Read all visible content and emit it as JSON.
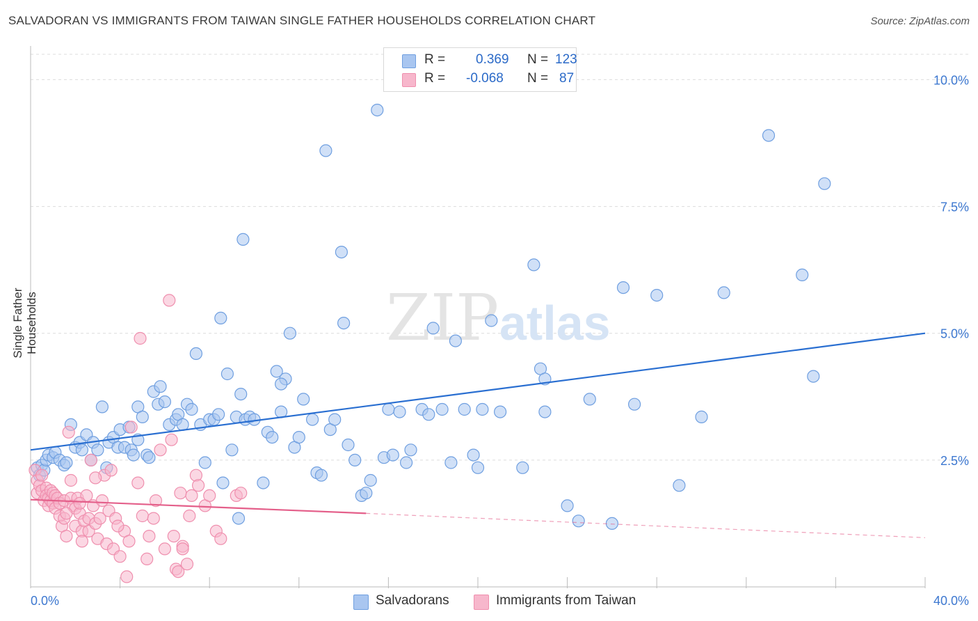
{
  "title": "SALVADORAN VS IMMIGRANTS FROM TAIWAN SINGLE FATHER HOUSEHOLDS CORRELATION CHART",
  "source": "Source: ZipAtlas.com",
  "watermark": {
    "zip": "ZIP",
    "atlas": "atlas"
  },
  "legend": {
    "rows": [
      {
        "r_label": "R =",
        "r_value": "0.369",
        "n_label": "N =",
        "n_value": "123",
        "color": "#a9c6f0"
      },
      {
        "r_label": "R =",
        "r_value": "-0.068",
        "n_label": "N =",
        "n_value": "87",
        "color": "#f7b7cc"
      }
    ]
  },
  "bottom_legend": [
    {
      "label": "Salvadorans",
      "color": "#a9c6f0"
    },
    {
      "label": "Immigrants from Taiwan",
      "color": "#f7b7cc"
    }
  ],
  "chart_data": {
    "type": "scatter",
    "title": "SALVADORAN VS IMMIGRANTS FROM TAIWAN SINGLE FATHER HOUSEHOLDS CORRELATION CHART",
    "xlabel": "",
    "ylabel": "Single Father Households",
    "xlim": [
      0,
      40
    ],
    "ylim": [
      0,
      10.5
    ],
    "x_tick_labels": [
      "0.0%",
      "40.0%"
    ],
    "y_ticks": [
      2.5,
      5.0,
      7.5,
      10.0
    ],
    "y_tick_labels": [
      "2.5%",
      "5.0%",
      "7.5%",
      "10.0%"
    ],
    "grid": true,
    "series": [
      {
        "name": "Salvadorans",
        "color": "#6f9fe0",
        "fill": "#a9c6f0",
        "trend": {
          "x": [
            0,
            40
          ],
          "y": [
            2.7,
            5.0
          ],
          "color": "#2a6fd1"
        },
        "points": [
          [
            0.3,
            2.35
          ],
          [
            0.4,
            2.2
          ],
          [
            0.5,
            2.4
          ],
          [
            0.6,
            2.3
          ],
          [
            0.7,
            2.5
          ],
          [
            0.8,
            2.6
          ],
          [
            1.0,
            2.55
          ],
          [
            1.1,
            2.65
          ],
          [
            1.3,
            2.5
          ],
          [
            1.5,
            2.4
          ],
          [
            1.6,
            2.45
          ],
          [
            1.8,
            3.2
          ],
          [
            2.0,
            2.75
          ],
          [
            2.2,
            2.85
          ],
          [
            2.3,
            2.7
          ],
          [
            2.5,
            3.0
          ],
          [
            2.7,
            2.5
          ],
          [
            2.8,
            2.85
          ],
          [
            3.0,
            2.7
          ],
          [
            3.2,
            3.55
          ],
          [
            3.4,
            2.35
          ],
          [
            3.5,
            2.85
          ],
          [
            3.7,
            2.95
          ],
          [
            3.9,
            2.75
          ],
          [
            4.0,
            3.1
          ],
          [
            4.2,
            2.75
          ],
          [
            4.4,
            3.15
          ],
          [
            4.5,
            2.7
          ],
          [
            4.6,
            2.6
          ],
          [
            4.8,
            3.55
          ],
          [
            5.0,
            3.35
          ],
          [
            5.2,
            2.6
          ],
          [
            5.3,
            2.55
          ],
          [
            5.5,
            3.85
          ],
          [
            5.7,
            3.6
          ],
          [
            5.8,
            3.95
          ],
          [
            6.0,
            3.65
          ],
          [
            6.2,
            3.2
          ],
          [
            6.5,
            3.3
          ],
          [
            6.6,
            3.4
          ],
          [
            6.8,
            3.2
          ],
          [
            7.0,
            3.6
          ],
          [
            7.2,
            3.5
          ],
          [
            7.4,
            4.6
          ],
          [
            7.6,
            3.2
          ],
          [
            7.8,
            2.45
          ],
          [
            8.0,
            3.3
          ],
          [
            8.2,
            3.3
          ],
          [
            8.4,
            3.4
          ],
          [
            8.6,
            2.05
          ],
          [
            8.8,
            4.2
          ],
          [
            9.0,
            2.7
          ],
          [
            9.2,
            3.35
          ],
          [
            9.4,
            3.8
          ],
          [
            9.6,
            3.3
          ],
          [
            9.8,
            3.35
          ],
          [
            10.0,
            3.3
          ],
          [
            10.4,
            2.05
          ],
          [
            10.6,
            3.05
          ],
          [
            10.8,
            2.95
          ],
          [
            11.0,
            4.25
          ],
          [
            11.2,
            3.45
          ],
          [
            11.4,
            4.1
          ],
          [
            11.6,
            5.0
          ],
          [
            11.8,
            2.75
          ],
          [
            12.0,
            2.95
          ],
          [
            12.2,
            3.7
          ],
          [
            12.6,
            3.3
          ],
          [
            12.8,
            2.25
          ],
          [
            13.0,
            2.2
          ],
          [
            13.2,
            8.6
          ],
          [
            13.4,
            3.1
          ],
          [
            13.6,
            3.3
          ],
          [
            13.9,
            6.6
          ],
          [
            14.0,
            5.2
          ],
          [
            14.2,
            2.8
          ],
          [
            14.5,
            2.5
          ],
          [
            14.8,
            1.8
          ],
          [
            15.0,
            1.85
          ],
          [
            15.2,
            2.1
          ],
          [
            15.5,
            9.4
          ],
          [
            15.8,
            2.55
          ],
          [
            16.0,
            3.5
          ],
          [
            16.2,
            2.6
          ],
          [
            16.5,
            3.45
          ],
          [
            16.8,
            2.45
          ],
          [
            17.0,
            2.7
          ],
          [
            17.5,
            3.5
          ],
          [
            17.8,
            3.4
          ],
          [
            18.0,
            5.1
          ],
          [
            18.4,
            3.5
          ],
          [
            18.8,
            2.45
          ],
          [
            19.0,
            4.85
          ],
          [
            19.4,
            3.5
          ],
          [
            19.8,
            2.6
          ],
          [
            20.0,
            2.35
          ],
          [
            20.2,
            3.5
          ],
          [
            20.6,
            5.25
          ],
          [
            22.0,
            2.35
          ],
          [
            21.0,
            3.45
          ],
          [
            22.5,
            6.35
          ],
          [
            22.8,
            4.3
          ],
          [
            23.0,
            4.1
          ],
          [
            23.0,
            3.45
          ],
          [
            24.0,
            1.6
          ],
          [
            24.5,
            1.3
          ],
          [
            25.0,
            3.7
          ],
          [
            26.0,
            1.25
          ],
          [
            26.5,
            5.9
          ],
          [
            27.0,
            3.6
          ],
          [
            28.0,
            5.75
          ],
          [
            29.0,
            2.0
          ],
          [
            30.0,
            3.35
          ],
          [
            31.0,
            5.8
          ],
          [
            33.0,
            8.9
          ],
          [
            34.5,
            6.15
          ],
          [
            35.0,
            4.15
          ],
          [
            35.5,
            7.95
          ],
          [
            9.5,
            6.85
          ],
          [
            8.5,
            5.3
          ],
          [
            11.2,
            4.0
          ],
          [
            9.3,
            1.35
          ],
          [
            4.8,
            2.9
          ]
        ]
      },
      {
        "name": "Immigrants from Taiwan",
        "color": "#ef8fae",
        "fill": "#f7b7cc",
        "trend": {
          "x": [
            0,
            15
          ],
          "y": [
            1.72,
            1.45
          ],
          "color": "#e45f8a",
          "dashed_extension": {
            "x": [
              15,
              40
            ],
            "y": [
              1.45,
              0.97
            ]
          }
        },
        "points": [
          [
            0.2,
            2.3
          ],
          [
            0.3,
            2.1
          ],
          [
            0.3,
            1.85
          ],
          [
            0.4,
            2.0
          ],
          [
            0.5,
            1.9
          ],
          [
            0.5,
            2.2
          ],
          [
            0.6,
            1.7
          ],
          [
            0.7,
            1.95
          ],
          [
            0.7,
            1.8
          ],
          [
            0.8,
            1.75
          ],
          [
            0.8,
            1.6
          ],
          [
            0.9,
            1.9
          ],
          [
            0.9,
            1.7
          ],
          [
            1.0,
            1.85
          ],
          [
            1.0,
            1.65
          ],
          [
            1.1,
            1.8
          ],
          [
            1.1,
            1.55
          ],
          [
            1.2,
            1.75
          ],
          [
            1.3,
            1.65
          ],
          [
            1.3,
            1.4
          ],
          [
            1.4,
            1.2
          ],
          [
            1.5,
            1.7
          ],
          [
            1.5,
            1.35
          ],
          [
            1.6,
            1.0
          ],
          [
            1.7,
            3.05
          ],
          [
            1.8,
            2.1
          ],
          [
            1.8,
            1.75
          ],
          [
            1.9,
            1.6
          ],
          [
            2.0,
            1.55
          ],
          [
            2.0,
            1.2
          ],
          [
            2.1,
            1.75
          ],
          [
            2.2,
            1.45
          ],
          [
            2.3,
            1.1
          ],
          [
            2.3,
            0.9
          ],
          [
            2.4,
            1.3
          ],
          [
            2.5,
            1.8
          ],
          [
            2.6,
            1.1
          ],
          [
            2.6,
            1.35
          ],
          [
            2.7,
            2.5
          ],
          [
            2.8,
            1.6
          ],
          [
            2.9,
            1.25
          ],
          [
            3.0,
            0.95
          ],
          [
            3.1,
            1.35
          ],
          [
            3.2,
            1.7
          ],
          [
            3.3,
            2.2
          ],
          [
            3.4,
            0.85
          ],
          [
            3.5,
            1.5
          ],
          [
            3.6,
            2.3
          ],
          [
            3.7,
            0.75
          ],
          [
            3.8,
            1.35
          ],
          [
            4.0,
            0.6
          ],
          [
            4.2,
            1.1
          ],
          [
            4.3,
            0.2
          ],
          [
            4.4,
            0.9
          ],
          [
            4.5,
            3.15
          ],
          [
            4.8,
            2.05
          ],
          [
            4.9,
            4.9
          ],
          [
            5.0,
            1.4
          ],
          [
            5.2,
            0.55
          ],
          [
            5.3,
            1.0
          ],
          [
            5.5,
            1.35
          ],
          [
            5.6,
            1.7
          ],
          [
            5.8,
            2.7
          ],
          [
            6.0,
            0.75
          ],
          [
            6.2,
            5.65
          ],
          [
            6.3,
            2.9
          ],
          [
            6.4,
            1.0
          ],
          [
            6.5,
            0.35
          ],
          [
            6.6,
            0.3
          ],
          [
            6.7,
            1.85
          ],
          [
            6.8,
            0.8
          ],
          [
            7.0,
            0.45
          ],
          [
            7.1,
            1.4
          ],
          [
            7.2,
            1.8
          ],
          [
            7.4,
            2.2
          ],
          [
            7.5,
            2.0
          ],
          [
            7.8,
            1.6
          ],
          [
            8.0,
            1.8
          ],
          [
            8.3,
            1.1
          ],
          [
            8.5,
            0.95
          ],
          [
            9.2,
            1.8
          ],
          [
            9.4,
            1.85
          ],
          [
            3.9,
            1.2
          ],
          [
            2.9,
            2.15
          ],
          [
            1.6,
            1.45
          ],
          [
            2.2,
            1.65
          ],
          [
            6.8,
            0.75
          ]
        ]
      }
    ]
  }
}
